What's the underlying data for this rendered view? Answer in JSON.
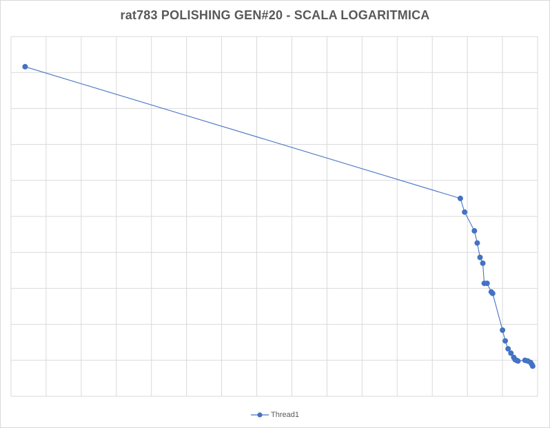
{
  "chart": {
    "title": "rat783 POLISHING GEN#20 - SCALA LOGARITMICA"
  },
  "chart_data": {
    "type": "line",
    "title": "rat783 POLISHING GEN#20 - SCALA LOGARITMICA",
    "xlabel": "",
    "ylabel": "",
    "x_axis_labels_shown": false,
    "y_axis_labels_shown": false,
    "grid": true,
    "legend_position": "bottom",
    "line_color": "#4472c4",
    "series": [
      {
        "name": "Thread1",
        "points": [
          [
            1,
            9.16
          ],
          [
            32,
            5.5
          ],
          [
            32.3,
            5.12
          ],
          [
            33,
            4.6
          ],
          [
            33.2,
            4.26
          ],
          [
            33.4,
            3.86
          ],
          [
            33.6,
            3.7
          ],
          [
            33.7,
            3.14
          ],
          [
            33.9,
            3.14
          ],
          [
            34.2,
            2.9
          ],
          [
            34.3,
            2.86
          ],
          [
            35,
            1.84
          ],
          [
            35.2,
            1.54
          ],
          [
            35.4,
            1.32
          ],
          [
            35.6,
            1.2
          ],
          [
            35.8,
            1.08
          ],
          [
            35.9,
            1.02
          ],
          [
            36,
            1.0
          ],
          [
            36.1,
            0.98
          ],
          [
            36.6,
            1.0
          ],
          [
            36.8,
            0.98
          ],
          [
            37,
            0.94
          ],
          [
            37.1,
            0.88
          ],
          [
            37.15,
            0.84
          ]
        ]
      }
    ],
    "xlim": [
      0,
      37.5
    ],
    "ylim": [
      0,
      10
    ]
  }
}
